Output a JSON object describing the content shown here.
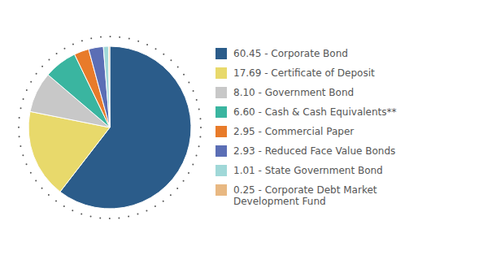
{
  "chart_data": {
    "type": "pie",
    "categories": [
      "60.45 - Corporate Bond",
      "17.69 - Certificate of Deposit",
      "8.10 - Government Bond",
      "6.60 - Cash & Cash Equivalents**",
      "2.95 - Commercial Paper",
      "2.93 - Reduced Face Value Bonds",
      "1.01 - State Government Bond",
      "0.25 - Corporate Debt Market\nDevelopment Fund"
    ],
    "values": [
      60.45,
      17.69,
      8.1,
      6.6,
      2.95,
      2.93,
      1.01,
      0.25
    ],
    "colors": [
      "#2b5c8a",
      "#e8d96b",
      "#c8c8c8",
      "#3ab5a0",
      "#e87b2a",
      "#5b6eb5",
      "#a0d8d8",
      "#e8b882"
    ],
    "legend": "right"
  }
}
